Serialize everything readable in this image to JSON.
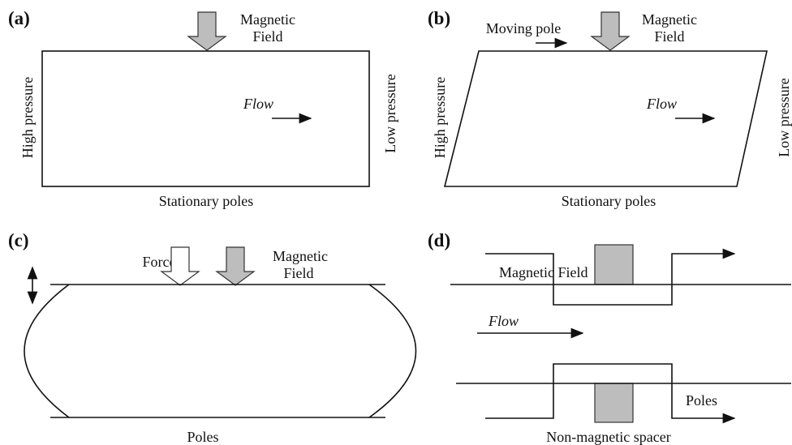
{
  "panels": [
    {
      "label": "(a)",
      "field": [
        "Magnetic",
        "Field"
      ],
      "left": "High pressure",
      "right": "Low pressure",
      "flow": "Flow",
      "bottom": "Stationary poles"
    },
    {
      "label": "(b)",
      "moving": "Moving pole",
      "field": [
        "Magnetic",
        "Field"
      ],
      "left": "High pressure",
      "right": "Low pressure",
      "flow": "Flow",
      "bottom": "Stationary poles"
    },
    {
      "label": "(c)",
      "force": "Force",
      "field": [
        "Magnetic",
        "Field"
      ],
      "bottom": "Poles"
    },
    {
      "label": "(d)",
      "field": "Magnetic Field",
      "flow": "Flow",
      "poles": "Poles",
      "spacer": "Non-magnetic spacer"
    }
  ]
}
